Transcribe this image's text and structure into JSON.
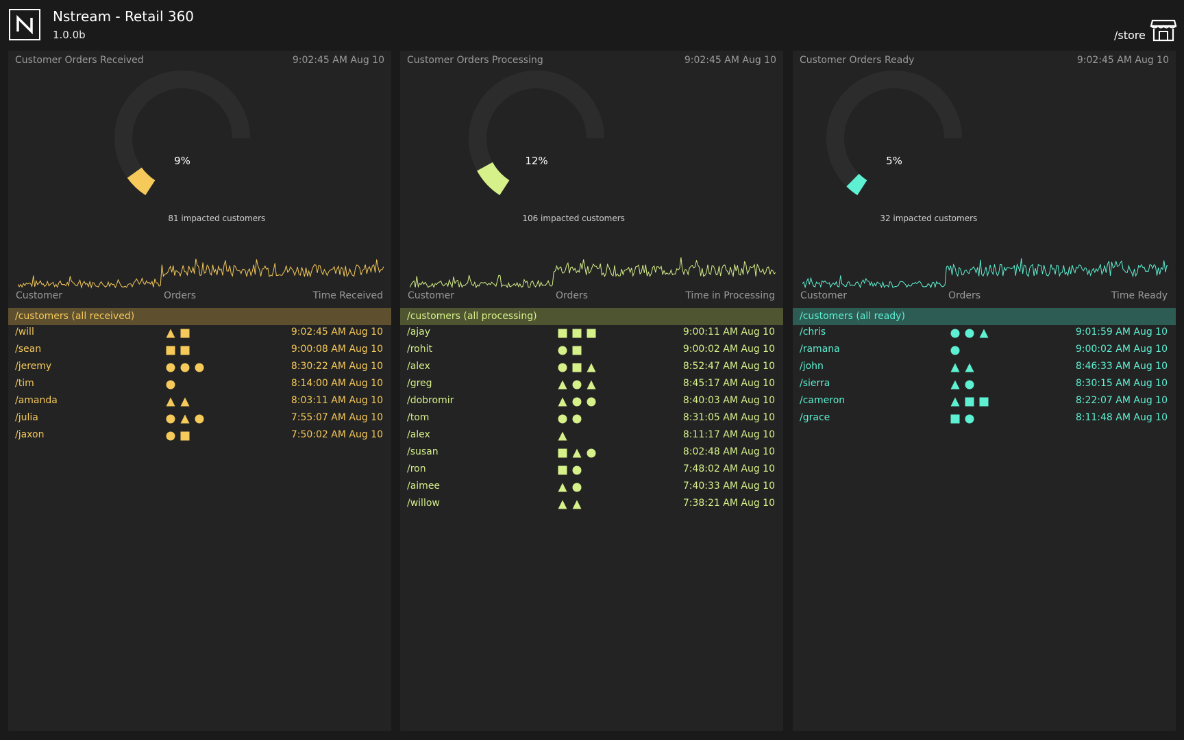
{
  "app": {
    "title": "Nstream - Retail 360",
    "version": "1.0.0b",
    "store_label": "/store",
    "logo_icon": "nstream-logo-icon",
    "store_icon": "storefront-icon"
  },
  "panels": [
    {
      "title": "Customer Orders Received",
      "timestamp": "9:02:45 AM Aug 10",
      "accent": "#f5c95a",
      "group_bg": "#5e4f2e",
      "gauge": {
        "percent_label": "9%",
        "percent": 0.09,
        "impact_label": "81 impacted customers"
      },
      "columns": {
        "customer": "Customer",
        "orders": "Orders",
        "time": "Time Received"
      },
      "group_label": "/customers (all received)",
      "rows": [
        {
          "customer": "/will",
          "orders": [
            "triangle",
            "square"
          ],
          "time": "9:02:45 AM Aug 10"
        },
        {
          "customer": "/sean",
          "orders": [
            "square",
            "square"
          ],
          "time": "9:00:08 AM Aug 10"
        },
        {
          "customer": "/jeremy",
          "orders": [
            "circle",
            "circle",
            "circle"
          ],
          "time": "8:30:22 AM Aug 10"
        },
        {
          "customer": "/tim",
          "orders": [
            "circle"
          ],
          "time": "8:14:00 AM Aug 10"
        },
        {
          "customer": "/amanda",
          "orders": [
            "triangle",
            "triangle"
          ],
          "time": "8:03:11 AM Aug 10"
        },
        {
          "customer": "/julia",
          "orders": [
            "circle",
            "triangle",
            "circle"
          ],
          "time": "7:55:07 AM Aug 10"
        },
        {
          "customer": "/jaxon",
          "orders": [
            "circle",
            "square"
          ],
          "time": "7:50:02 AM Aug 10"
        }
      ]
    },
    {
      "title": "Customer Orders Processing",
      "timestamp": "9:02:45 AM Aug 10",
      "accent": "#d6f08a",
      "group_bg": "#4f5530",
      "gauge": {
        "percent_label": "12%",
        "percent": 0.12,
        "impact_label": "106 impacted customers"
      },
      "columns": {
        "customer": "Customer",
        "orders": "Orders",
        "time": "Time in Processing"
      },
      "group_label": "/customers (all processing)",
      "rows": [
        {
          "customer": "/ajay",
          "orders": [
            "square",
            "square",
            "square"
          ],
          "time": "9:00:11 AM Aug 10"
        },
        {
          "customer": "/rohit",
          "orders": [
            "circle",
            "square"
          ],
          "time": "9:00:02 AM Aug 10"
        },
        {
          "customer": "/alex",
          "orders": [
            "circle",
            "square",
            "triangle"
          ],
          "time": "8:52:47 AM Aug 10"
        },
        {
          "customer": "/greg",
          "orders": [
            "triangle",
            "circle",
            "triangle"
          ],
          "time": "8:45:17 AM Aug 10"
        },
        {
          "customer": "/dobromir",
          "orders": [
            "triangle",
            "circle",
            "circle"
          ],
          "time": "8:40:03 AM Aug 10"
        },
        {
          "customer": "/tom",
          "orders": [
            "circle",
            "circle"
          ],
          "time": "8:31:05 AM Aug 10"
        },
        {
          "customer": "/alex",
          "orders": [
            "triangle"
          ],
          "time": "8:11:17 AM Aug 10"
        },
        {
          "customer": "/susan",
          "orders": [
            "square",
            "triangle",
            "circle"
          ],
          "time": "8:02:48 AM Aug 10"
        },
        {
          "customer": "/ron",
          "orders": [
            "square",
            "circle"
          ],
          "time": "7:48:02 AM Aug 10"
        },
        {
          "customer": "/aimee",
          "orders": [
            "triangle",
            "circle"
          ],
          "time": "7:40:33 AM Aug 10"
        },
        {
          "customer": "/willow",
          "orders": [
            "triangle",
            "triangle"
          ],
          "time": "7:38:21 AM Aug 10"
        }
      ]
    },
    {
      "title": "Customer Orders Ready",
      "timestamp": "9:02:45 AM Aug 10",
      "accent": "#5ef0d2",
      "group_bg": "#2c5c54",
      "gauge": {
        "percent_label": "5%",
        "percent": 0.05,
        "impact_label": "32 impacted customers"
      },
      "columns": {
        "customer": "Customer",
        "orders": "Orders",
        "time": "Time Ready"
      },
      "group_label": "/customers (all ready)",
      "rows": [
        {
          "customer": "/chris",
          "orders": [
            "circle",
            "circle",
            "triangle"
          ],
          "time": "9:01:59 AM Aug 10"
        },
        {
          "customer": "/ramana",
          "orders": [
            "circle"
          ],
          "time": "9:00:02 AM Aug 10"
        },
        {
          "customer": "/john",
          "orders": [
            "triangle",
            "triangle"
          ],
          "time": "8:46:33 AM Aug 10"
        },
        {
          "customer": "/sierra",
          "orders": [
            "triangle",
            "circle"
          ],
          "time": "8:30:15 AM Aug 10"
        },
        {
          "customer": "/cameron",
          "orders": [
            "triangle",
            "square",
            "square"
          ],
          "time": "8:22:07 AM Aug 10"
        },
        {
          "customer": "/grace",
          "orders": [
            "square",
            "circle"
          ],
          "time": "8:11:48 AM Aug 10"
        }
      ]
    }
  ]
}
